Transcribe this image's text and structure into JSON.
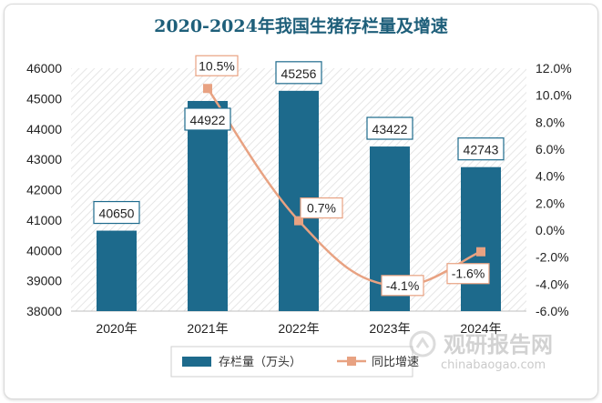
{
  "chart_data": {
    "type": "bar",
    "title": "2020-2024年我国生猪存栏量及增速",
    "categories": [
      "2020年",
      "2021年",
      "2022年",
      "2023年",
      "2024年"
    ],
    "series": [
      {
        "name": "存栏量（万头）",
        "type": "bar",
        "axis": "left",
        "color": "#1d6a8c",
        "values": [
          40650,
          44922,
          45256,
          43422,
          42743
        ],
        "labels": [
          "40650",
          "44922",
          "45256",
          "43422",
          "42743"
        ]
      },
      {
        "name": "同比增速",
        "type": "line",
        "axis": "right",
        "color": "#e8a282",
        "values": [
          null,
          10.5,
          0.7,
          -4.1,
          -1.6
        ],
        "labels": [
          "",
          "10.5%",
          "0.7%",
          "-4.1%",
          "-1.6%"
        ]
      }
    ],
    "y_left": {
      "min": 38000,
      "max": 46000,
      "step": 1000
    },
    "y_right": {
      "min": -6,
      "max": 12,
      "step": 2,
      "format": "percent"
    },
    "legend_position": "bottom",
    "grid": false
  },
  "watermark": {
    "main": "观研报告网",
    "sub": "chinabaogao.com"
  }
}
